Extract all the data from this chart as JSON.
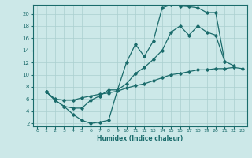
{
  "xlabel": "Humidex (Indice chaleur)",
  "bg_color": "#cce8e8",
  "grid_color": "#aacfcf",
  "line_color": "#1a6b6b",
  "xlim": [
    -0.5,
    23.5
  ],
  "ylim": [
    1.5,
    21.5
  ],
  "xticks": [
    0,
    1,
    2,
    3,
    4,
    5,
    6,
    7,
    8,
    9,
    10,
    11,
    12,
    13,
    14,
    15,
    16,
    17,
    18,
    19,
    20,
    21,
    22,
    23
  ],
  "yticks": [
    2,
    4,
    6,
    8,
    10,
    12,
    14,
    16,
    18,
    20
  ],
  "line1_x": [
    1,
    2,
    3,
    4,
    5,
    6,
    7,
    8,
    9,
    10,
    11,
    12,
    13,
    14,
    15,
    16,
    17,
    18,
    19,
    20,
    21
  ],
  "line1_y": [
    7.2,
    5.8,
    4.8,
    3.5,
    2.5,
    2.0,
    2.2,
    2.5,
    7.5,
    12.0,
    15.0,
    13.0,
    15.5,
    21.0,
    21.5,
    21.3,
    21.2,
    21.0,
    20.2,
    20.2,
    12.2
  ],
  "line2_x": [
    1,
    2,
    3,
    4,
    5,
    6,
    7,
    8,
    9,
    10,
    11,
    12,
    13,
    14,
    15,
    16,
    17,
    18,
    19,
    20,
    21,
    22
  ],
  "line2_y": [
    7.2,
    5.8,
    4.8,
    4.5,
    4.5,
    5.8,
    6.5,
    7.5,
    7.5,
    8.5,
    10.2,
    11.2,
    12.5,
    14.0,
    17.0,
    18.0,
    16.5,
    18.0,
    17.0,
    16.5,
    12.2,
    11.5
  ],
  "line3_x": [
    1,
    2,
    3,
    4,
    5,
    6,
    7,
    8,
    9,
    10,
    11,
    12,
    13,
    14,
    15,
    16,
    17,
    18,
    19,
    20,
    21,
    22,
    23
  ],
  "line3_y": [
    7.2,
    6.0,
    5.8,
    5.8,
    6.2,
    6.5,
    6.8,
    7.0,
    7.3,
    7.8,
    8.2,
    8.5,
    9.0,
    9.5,
    10.0,
    10.2,
    10.5,
    10.8,
    10.8,
    11.0,
    11.0,
    11.2,
    11.0
  ]
}
